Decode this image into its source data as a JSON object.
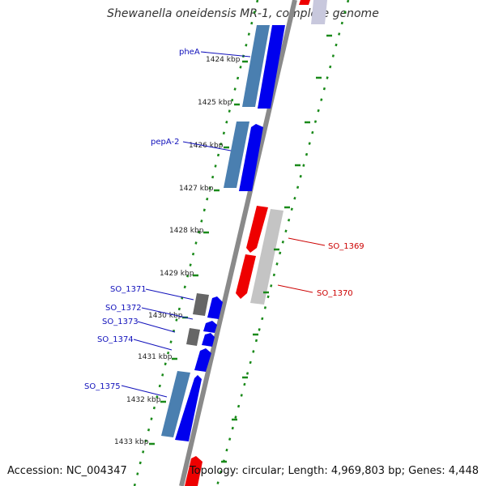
{
  "title": "Shewanella oneidensis MR-1, complete genome",
  "accession": "Accession: NC_004347",
  "topology": "Topology: circular; Length: 4,969,803 bp; Genes: 4,448",
  "colors": {
    "forward_gene": "#0000ee",
    "reverse_gene": "#ee0000",
    "feature_blue": "#4a7fb0",
    "feature_gray": "#666666",
    "feature_light_gray": "#bdbdbd",
    "backbone": "#8a8a8a",
    "tick_green": "#1a8a1a",
    "label_blue": "#1010bb",
    "label_red": "#cc0000"
  },
  "scale_labels": [
    "1424 kbp",
    "1425 kbp",
    "1426 kbp",
    "1427 kbp",
    "1428 kbp",
    "1429 kbp",
    "1430 kbp",
    "1431 kbp",
    "1432 kbp",
    "1433 kbp"
  ],
  "gene_labels_left": [
    "pheA",
    "pepA-2",
    "SO_1371",
    "SO_1372",
    "SO_1373",
    "SO_1374",
    "SO_1375"
  ],
  "gene_labels_right": [
    "SO_1369",
    "SO_1370"
  ]
}
